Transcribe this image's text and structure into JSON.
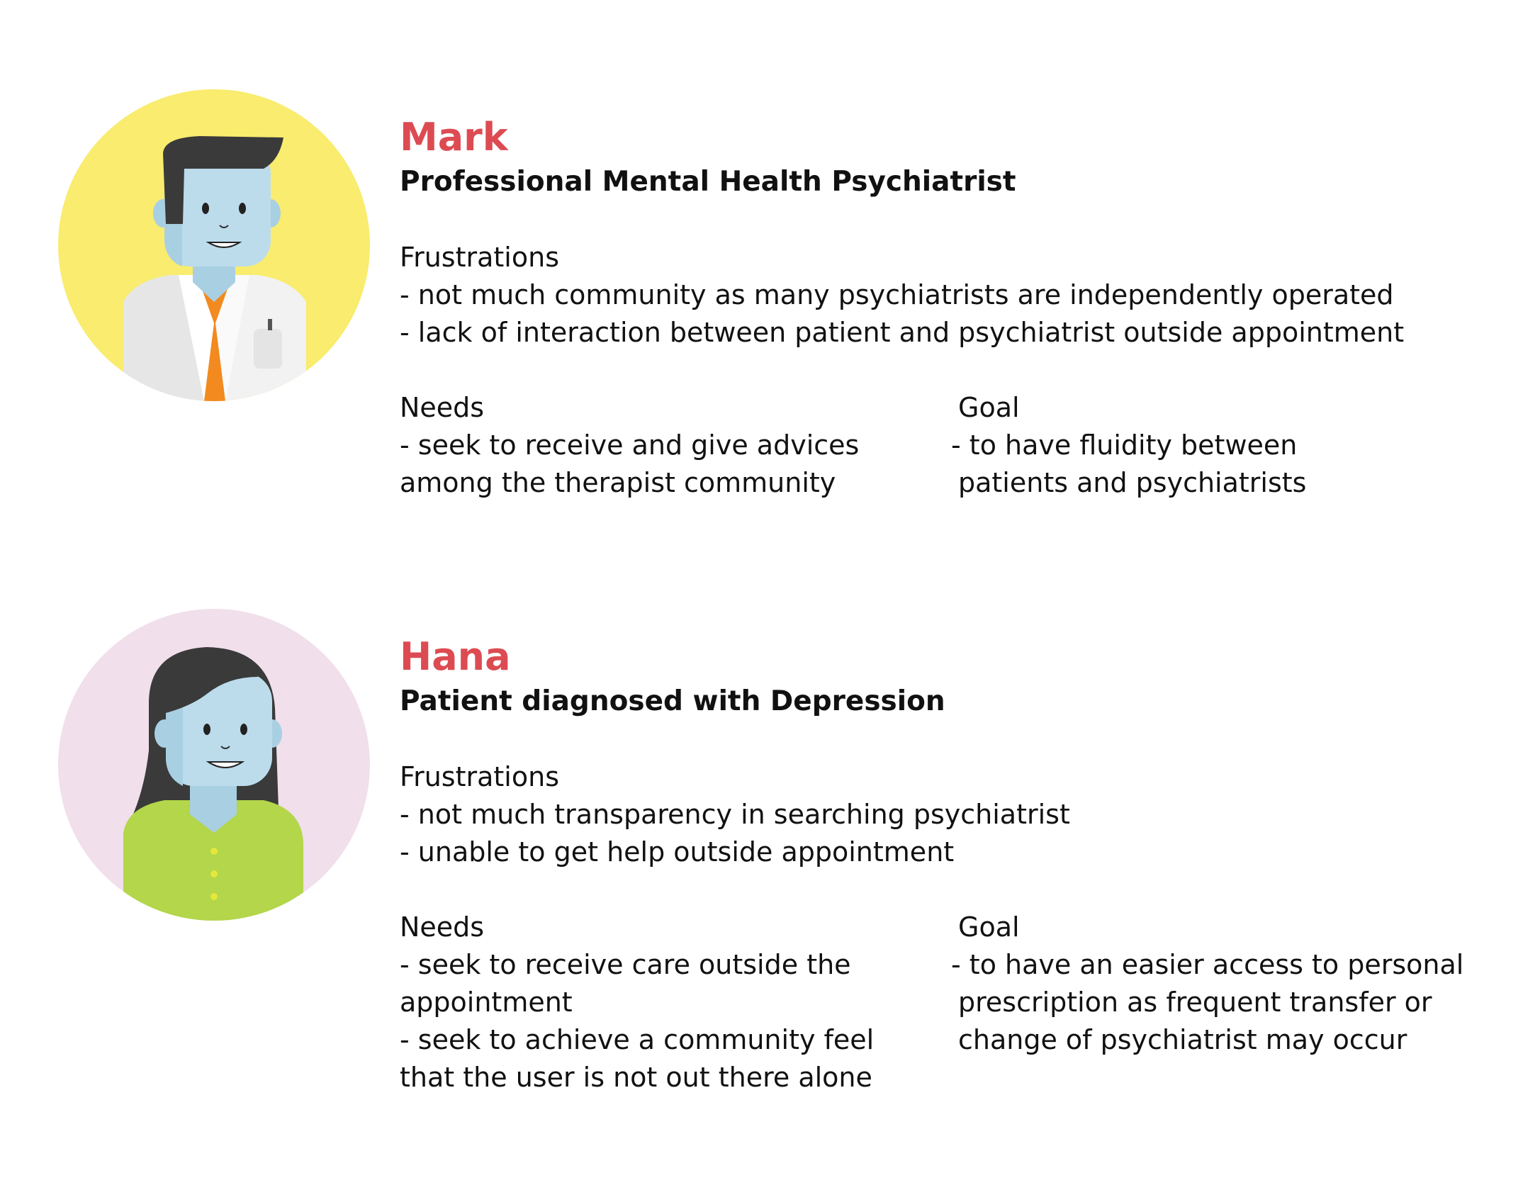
{
  "personas": [
    {
      "name": "Mark",
      "role": "Professional Mental Health Psychiatrist",
      "avatar_icon": "male-doctor-avatar-icon",
      "avatar_bg": "#f9ec6e",
      "frustrations": {
        "heading": "Frustrations",
        "lines": [
          "- not much community as many psychiatrists are independently operated",
          "- lack of interaction between patient and psychiatrist outside appointment"
        ]
      },
      "needs": {
        "heading": "Needs",
        "lines": [
          "- seek to receive and give advices",
          "among the therapist community"
        ]
      },
      "goal": {
        "heading": "Goal",
        "lines": [
          "- to have fluidity between",
          "patients and psychiatrists"
        ]
      }
    },
    {
      "name": "Hana",
      "role": "Patient diagnosed with Depression",
      "avatar_icon": "female-patient-avatar-icon",
      "avatar_bg": "#f1dfeb",
      "frustrations": {
        "heading": "Frustrations",
        "lines": [
          "- not much transparency in searching psychiatrist",
          "- unable to get help outside appointment"
        ]
      },
      "needs": {
        "heading": "Needs",
        "lines": [
          "- seek to receive care outside the",
          "appointment",
          "- seek to achieve a community feel",
          "that the user is not out there alone"
        ]
      },
      "goal": {
        "heading": "Goal",
        "lines": [
          "- to have an easier access to personal",
          "prescription as frequent transfer or",
          "change of psychiatrist may occur"
        ]
      }
    }
  ],
  "colors": {
    "name_accent": "#dd4b52",
    "skin": "#bcdcec",
    "hair": "#3a3a3a",
    "doctor_shirt": "#f28a1f",
    "patient_top": "#b3d64a"
  }
}
